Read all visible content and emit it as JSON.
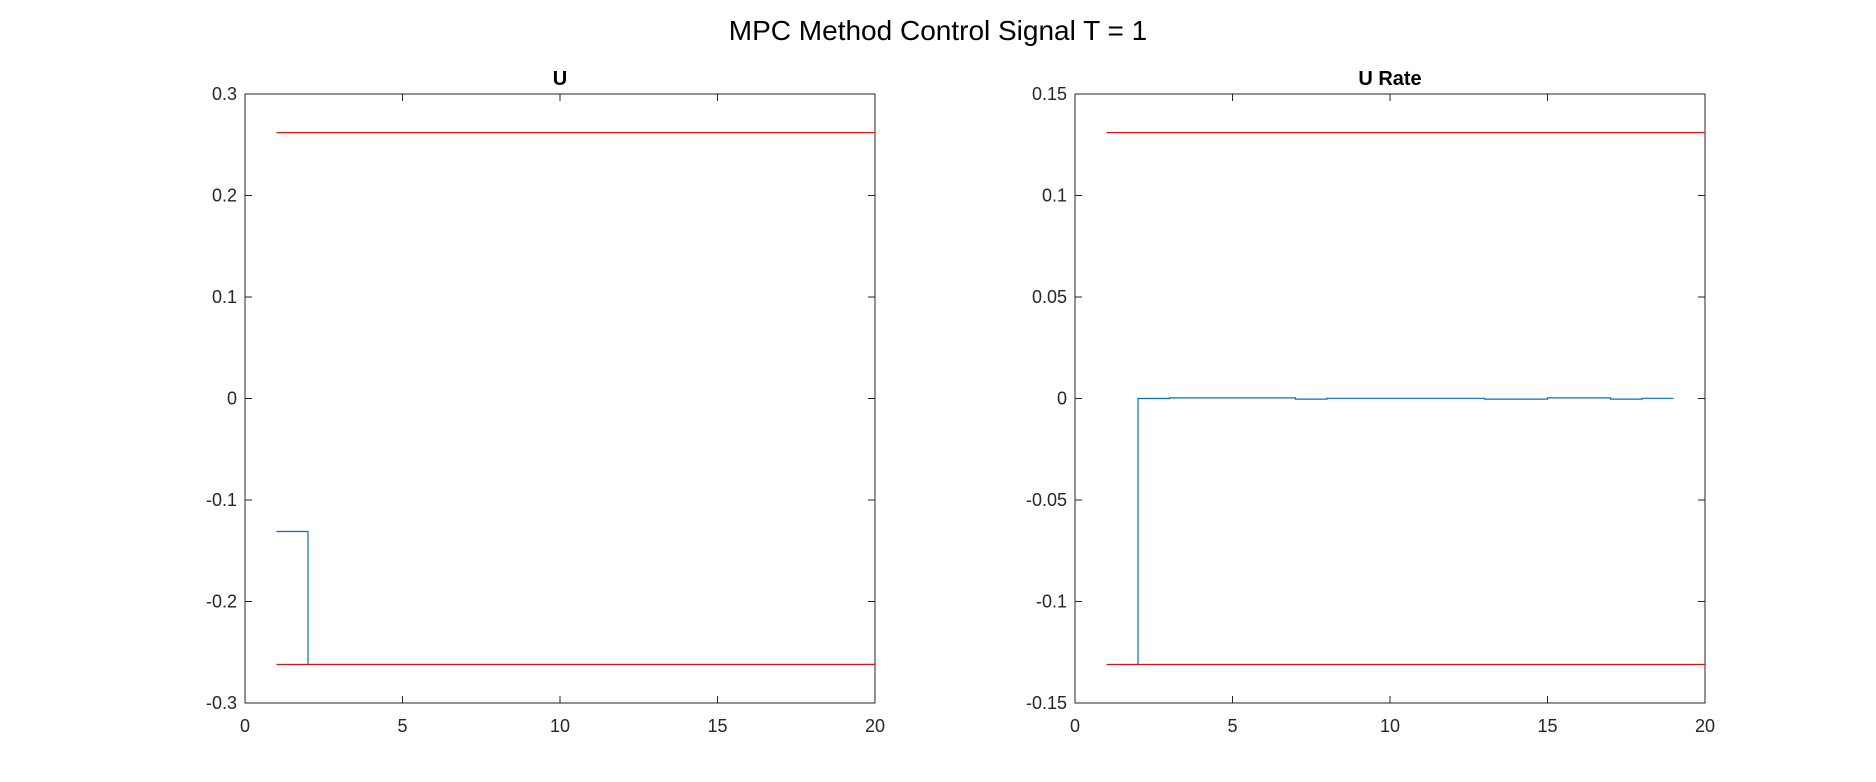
{
  "figure": {
    "title": "MPC Method Control Signal T = 1"
  },
  "chart_data": [
    {
      "type": "line",
      "step": true,
      "title": "U",
      "xlabel": "",
      "ylabel": "",
      "xlim": [
        0,
        20
      ],
      "ylim": [
        -0.3,
        0.3
      ],
      "xticks": [
        0,
        5,
        10,
        15,
        20
      ],
      "yticks": [
        -0.3,
        -0.2,
        -0.1,
        0,
        0.1,
        0.2,
        0.3
      ],
      "grid": false,
      "series": [
        {
          "color": "#0072BD",
          "x": [
            1,
            2,
            2,
            20
          ],
          "y": [
            -0.131,
            -0.131,
            -0.262,
            -0.262
          ]
        },
        {
          "color": "#FF0000",
          "x": [
            1,
            20
          ],
          "y": [
            0.262,
            0.262
          ]
        },
        {
          "color": "#FF0000",
          "x": [
            1,
            20
          ],
          "y": [
            -0.262,
            -0.262
          ]
        }
      ]
    },
    {
      "type": "line",
      "step": true,
      "title": "U Rate",
      "xlabel": "",
      "ylabel": "",
      "xlim": [
        0,
        20
      ],
      "ylim": [
        -0.15,
        0.15
      ],
      "xticks": [
        0,
        5,
        10,
        15,
        20
      ],
      "yticks": [
        -0.15,
        -0.1,
        -0.05,
        0,
        0.05,
        0.1,
        0.15
      ],
      "grid": false,
      "series": [
        {
          "color": "#0072BD",
          "x": [
            2,
            2,
            3,
            3,
            7,
            7,
            8,
            8,
            13,
            13,
            15,
            15,
            17,
            17,
            18,
            18,
            19
          ],
          "y": [
            -0.131,
            0,
            0,
            0.0003,
            0.0003,
            -0.0003,
            -0.0003,
            0.0001,
            0.0001,
            -0.0003,
            -0.0003,
            0.0003,
            0.0003,
            -0.0003,
            -0.0003,
            0.0001,
            0.0001
          ]
        },
        {
          "color": "#FF0000",
          "x": [
            1,
            20
          ],
          "y": [
            0.131,
            0.131
          ]
        },
        {
          "color": "#FF0000",
          "x": [
            1,
            20
          ],
          "y": [
            -0.131,
            -0.131
          ]
        }
      ]
    }
  ]
}
